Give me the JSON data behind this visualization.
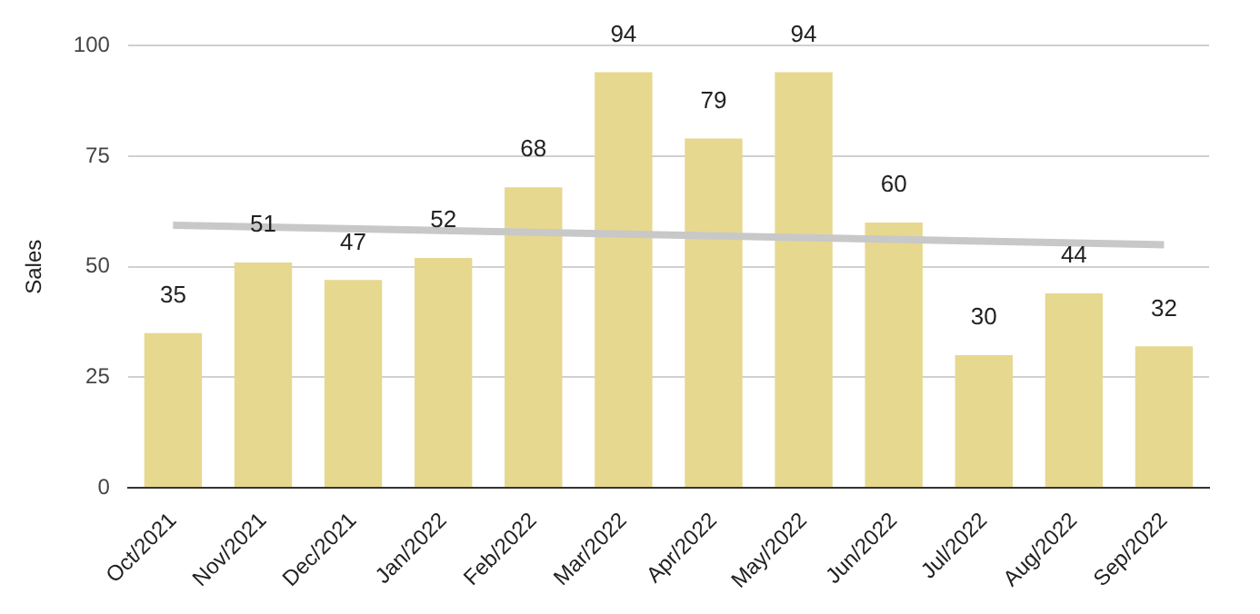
{
  "chart_data": {
    "type": "bar",
    "ylabel": "Sales",
    "categories": [
      "Oct/2021",
      "Nov/2021",
      "Dec/2021",
      "Jan/2022",
      "Feb/2022",
      "Mar/2022",
      "Apr/2022",
      "May/2022",
      "Jun/2022",
      "Jul/2022",
      "Aug/2022",
      "Sep/2022"
    ],
    "series": [
      {
        "color": "#e6d88f",
        "values": [
          35,
          51,
          47,
          52,
          68,
          94,
          79,
          94,
          60,
          30,
          44,
          32
        ],
        "value_labels": [
          "35",
          "51",
          "47",
          "52",
          "68",
          "94",
          "79",
          "94",
          "60",
          "30",
          "44",
          "32"
        ]
      },
      {
        "type": "line",
        "color": "#c8c8c8",
        "x": [
          "Oct/2021",
          "Sep/2022"
        ],
        "values": [
          59.4,
          55
        ]
      }
    ],
    "ylim": [
      0,
      100
    ],
    "yticks": [
      0,
      25,
      50,
      75,
      100
    ],
    "grid": "y",
    "legend": false
  }
}
